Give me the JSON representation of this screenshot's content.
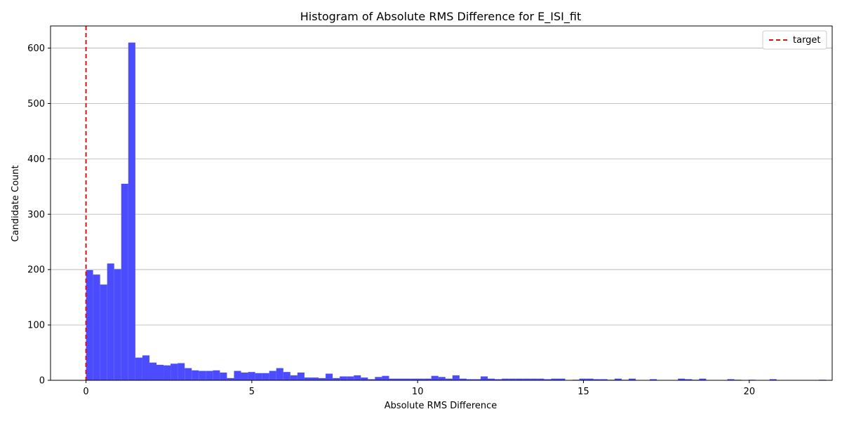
{
  "chart_data": {
    "type": "bar",
    "title": "Histogram of Absolute RMS Difference for E_ISI_fit",
    "xlabel": "Absolute RMS Difference",
    "ylabel": "Candidate Count",
    "xlim": [
      -1.07,
      22.5
    ],
    "ylim": [
      0,
      640
    ],
    "x_ticks": [
      0,
      5,
      10,
      15,
      20
    ],
    "x_tick_labels": [
      "0",
      "5",
      "10",
      "15",
      "20"
    ],
    "y_ticks": [
      0,
      100,
      200,
      300,
      400,
      500,
      600
    ],
    "y_tick_labels": [
      "0",
      "100",
      "200",
      "300",
      "400",
      "500",
      "600"
    ],
    "grid": "horizontal",
    "bar_color": "#4b4bff",
    "bins": {
      "start": 0,
      "width": 0.2125,
      "counts": [
        199,
        191,
        173,
        211,
        201,
        355,
        610,
        41,
        45,
        32,
        28,
        27,
        30,
        31,
        22,
        18,
        17,
        17,
        18,
        14,
        4,
        17,
        14,
        15,
        13,
        13,
        17,
        22,
        15,
        9,
        14,
        5,
        5,
        4,
        12,
        4,
        7,
        7,
        9,
        5,
        2,
        6,
        8,
        3,
        3,
        3,
        3,
        3,
        3,
        8,
        6,
        3,
        9,
        3,
        2,
        2,
        7,
        3,
        2,
        3,
        3,
        3,
        3,
        3,
        3,
        2,
        3,
        3,
        0,
        1,
        3,
        3,
        2,
        2,
        1,
        3,
        1,
        3,
        0,
        0,
        2,
        0,
        0,
        0,
        3,
        2,
        1,
        3,
        0,
        0,
        0,
        2,
        1,
        0,
        1,
        0,
        0,
        2,
        0,
        0,
        0,
        0,
        0,
        0,
        1
      ]
    },
    "target_line": {
      "x": 0,
      "color": "#e01010",
      "label": "target"
    },
    "legend": {
      "placement": "top-right",
      "entries": [
        "target"
      ]
    }
  }
}
